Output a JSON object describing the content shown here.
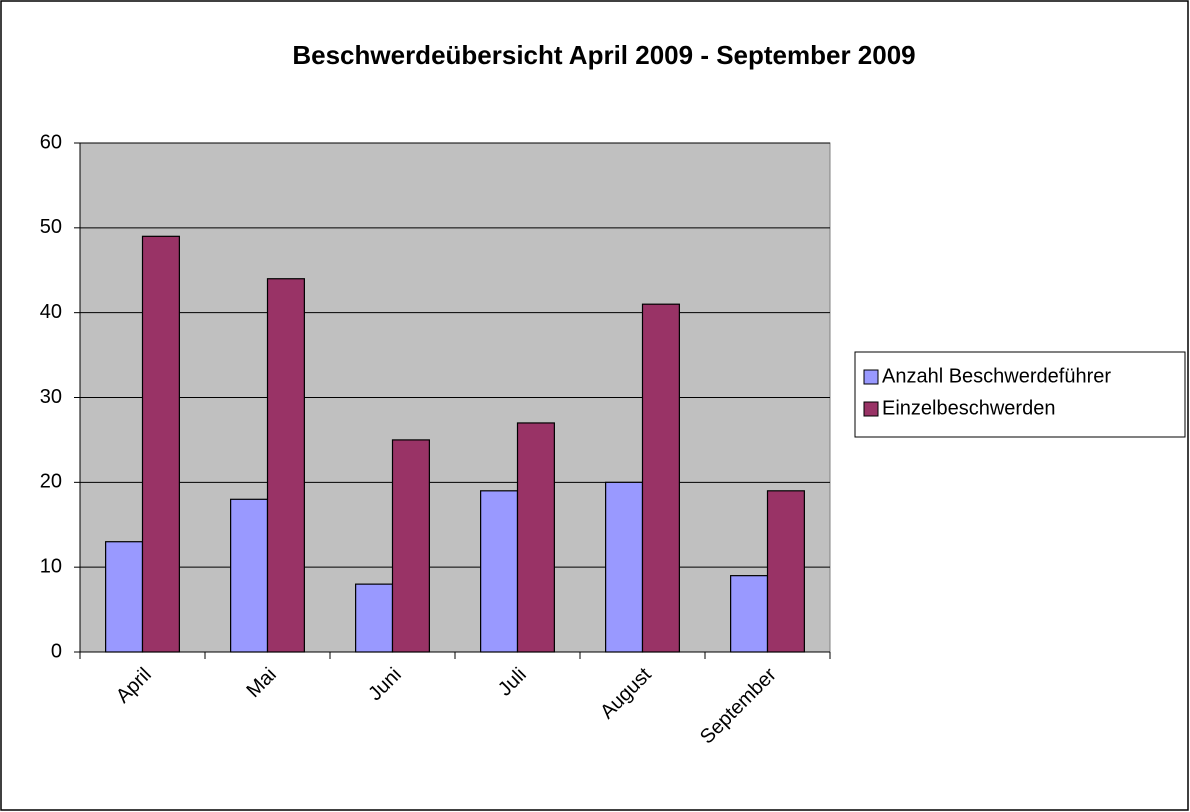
{
  "chart_data": {
    "type": "bar",
    "title": "Beschwerdeübersicht April 2009 - September 2009",
    "categories": [
      "April",
      "Mai",
      "Juni",
      "Juli",
      "August",
      "September"
    ],
    "series": [
      {
        "name": "Anzahl Beschwerdeführer",
        "color": "#9999ff",
        "values": [
          13,
          18,
          8,
          19,
          20,
          9
        ]
      },
      {
        "name": "Einzelbeschwerden",
        "color": "#993366",
        "values": [
          49,
          44,
          25,
          27,
          41,
          19
        ]
      }
    ],
    "ylim": [
      0,
      60
    ],
    "yticks": [
      0,
      10,
      20,
      30,
      40,
      50,
      60
    ],
    "grid": true,
    "legend": "right"
  }
}
